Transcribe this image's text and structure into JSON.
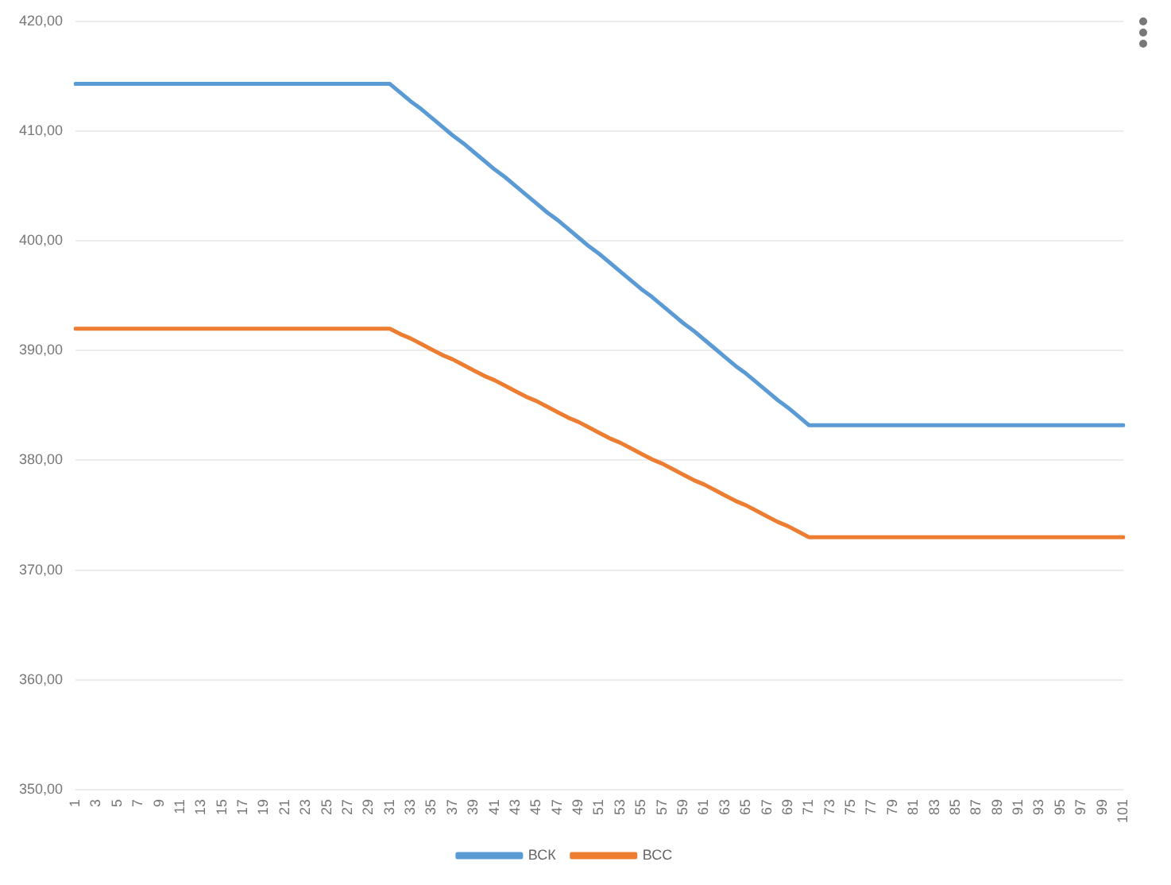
{
  "chart_data": {
    "type": "line",
    "categories": [
      "1",
      null,
      "3",
      null,
      "5",
      null,
      "7",
      null,
      "9",
      null,
      "11",
      null,
      "13",
      null,
      "15",
      null,
      "17",
      null,
      "19",
      null,
      "21",
      null,
      "23",
      null,
      "25",
      null,
      "27",
      null,
      "29",
      null,
      "31",
      null,
      "33",
      null,
      "35",
      null,
      "37",
      null,
      "39",
      null,
      "41",
      null,
      "43",
      null,
      "45",
      null,
      "47",
      null,
      "49",
      null,
      "51",
      null,
      "53",
      null,
      "55",
      null,
      "57",
      null,
      "59",
      null,
      "61",
      null,
      "63",
      null,
      "65",
      null,
      "67",
      null,
      "69",
      null,
      "71",
      null,
      "73",
      null,
      "75",
      null,
      "77",
      null,
      "79",
      null,
      "81",
      null,
      "83",
      null,
      "85",
      null,
      "87",
      null,
      "89",
      null,
      "91",
      null,
      "93",
      null,
      "95",
      null,
      "97",
      null,
      "99",
      null,
      "101"
    ],
    "series": [
      {
        "name": "ВСК",
        "color": "#5b9bd5",
        "values": [
          414.3,
          414.3,
          414.3,
          414.3,
          414.3,
          414.3,
          414.3,
          414.3,
          414.3,
          414.3,
          414.3,
          414.3,
          414.3,
          414.3,
          414.3,
          414.3,
          414.3,
          414.3,
          414.3,
          414.3,
          414.3,
          414.3,
          414.3,
          414.3,
          414.3,
          414.3,
          414.3,
          414.3,
          414.3,
          414.3,
          414.3,
          413.5,
          412.7,
          412.0,
          411.2,
          410.4,
          409.6,
          408.9,
          408.1,
          407.3,
          406.5,
          405.8,
          405.0,
          404.2,
          403.4,
          402.6,
          401.9,
          401.1,
          400.3,
          399.5,
          398.8,
          398.0,
          397.2,
          396.4,
          395.6,
          394.9,
          394.1,
          393.3,
          392.5,
          391.8,
          391.0,
          390.2,
          389.4,
          388.6,
          387.9,
          387.1,
          386.3,
          385.5,
          384.8,
          384.0,
          383.2,
          383.2,
          383.2,
          383.2,
          383.2,
          383.2,
          383.2,
          383.2,
          383.2,
          383.2,
          383.2,
          383.2,
          383.2,
          383.2,
          383.2,
          383.2,
          383.2,
          383.2,
          383.2,
          383.2,
          383.2,
          383.2,
          383.2,
          383.2,
          383.2,
          383.2,
          383.2,
          383.2,
          383.2,
          383.2,
          383.2
        ]
      },
      {
        "name": "ВСС",
        "color": "#ed7d31",
        "values": [
          392.0,
          392.0,
          392.0,
          392.0,
          392.0,
          392.0,
          392.0,
          392.0,
          392.0,
          392.0,
          392.0,
          392.0,
          392.0,
          392.0,
          392.0,
          392.0,
          392.0,
          392.0,
          392.0,
          392.0,
          392.0,
          392.0,
          392.0,
          392.0,
          392.0,
          392.0,
          392.0,
          392.0,
          392.0,
          392.0,
          392.0,
          391.5,
          391.1,
          390.6,
          390.1,
          389.6,
          389.2,
          388.7,
          388.2,
          387.7,
          387.3,
          386.8,
          386.3,
          385.8,
          385.4,
          384.9,
          384.4,
          383.9,
          383.5,
          383.0,
          382.5,
          382.0,
          381.6,
          381.1,
          380.6,
          380.1,
          379.7,
          379.2,
          378.7,
          378.2,
          377.8,
          377.3,
          376.8,
          376.3,
          375.9,
          375.4,
          374.9,
          374.4,
          374.0,
          373.5,
          373.0,
          373.0,
          373.0,
          373.0,
          373.0,
          373.0,
          373.0,
          373.0,
          373.0,
          373.0,
          373.0,
          373.0,
          373.0,
          373.0,
          373.0,
          373.0,
          373.0,
          373.0,
          373.0,
          373.0,
          373.0,
          373.0,
          373.0,
          373.0,
          373.0,
          373.0,
          373.0,
          373.0,
          373.0,
          373.0,
          373.0
        ]
      }
    ],
    "ylim": [
      350,
      420
    ],
    "yticks": [
      {
        "value": 350,
        "label": "350,00"
      },
      {
        "value": 360,
        "label": "360,00"
      },
      {
        "value": 370,
        "label": "370,00"
      },
      {
        "value": 380,
        "label": "380,00"
      },
      {
        "value": 390,
        "label": "390,00"
      },
      {
        "value": 400,
        "label": "400,00"
      },
      {
        "value": 410,
        "label": "410,00"
      },
      {
        "value": 420,
        "label": "420,00"
      }
    ],
    "grid": "y",
    "legend": "bottom",
    "marker": "none",
    "line_style": "solid"
  }
}
